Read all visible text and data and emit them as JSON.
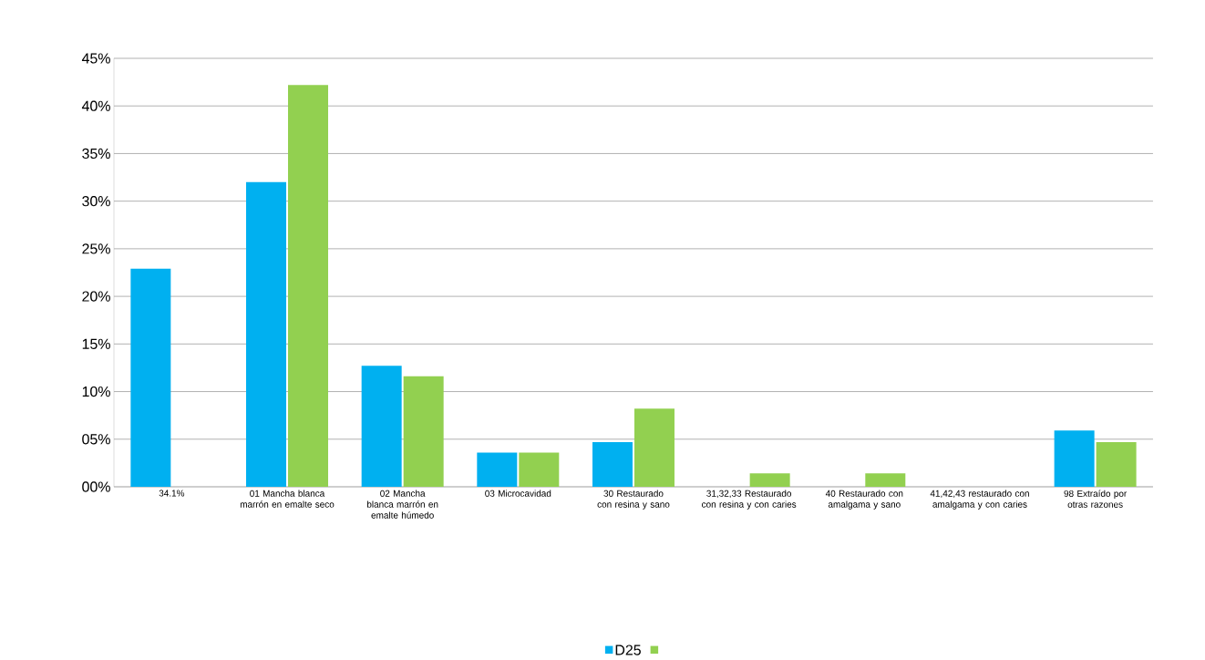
{
  "chart_data": {
    "type": "bar",
    "categories": [
      "34.1%",
      "01 Mancha blanca marrón en emalte seco",
      "02 Mancha blanca marrón en emalte húmedo",
      "03 Microcavidad",
      "30 Restaurado con resina y sano",
      "31,32,33 Restaurado con resina y con caries",
      "40 Restaurado con amalgama y sano",
      "41,42,43 restaurado con amalgama y con caries",
      "98 Extraído por otras razones"
    ],
    "series": [
      {
        "name": "D25",
        "color": "#00b0f0",
        "values": [
          22.9,
          32,
          12.7,
          3.6,
          4.7,
          0,
          0,
          0,
          5.9
        ]
      },
      {
        "color": "#92d050",
        "values": [
          null,
          42.2,
          11.6,
          3.6,
          8.2,
          1.4,
          1.4,
          0,
          4.7
        ]
      }
    ],
    "ylim": [
      0,
      45
    ],
    "yticks": [
      {
        "value": 0,
        "label": "00%"
      },
      {
        "value": 5,
        "label": "05%"
      },
      {
        "value": 10,
        "label": "10%"
      },
      {
        "value": 15,
        "label": "15%"
      },
      {
        "value": 20,
        "label": "20%"
      },
      {
        "value": 25,
        "label": "25%"
      },
      {
        "value": 30,
        "label": "30%"
      },
      {
        "value": 35,
        "label": "35%"
      },
      {
        "value": 40,
        "label": "40%"
      },
      {
        "value": 45,
        "label": "45%"
      }
    ],
    "grid": "y",
    "legend": "bottom"
  }
}
